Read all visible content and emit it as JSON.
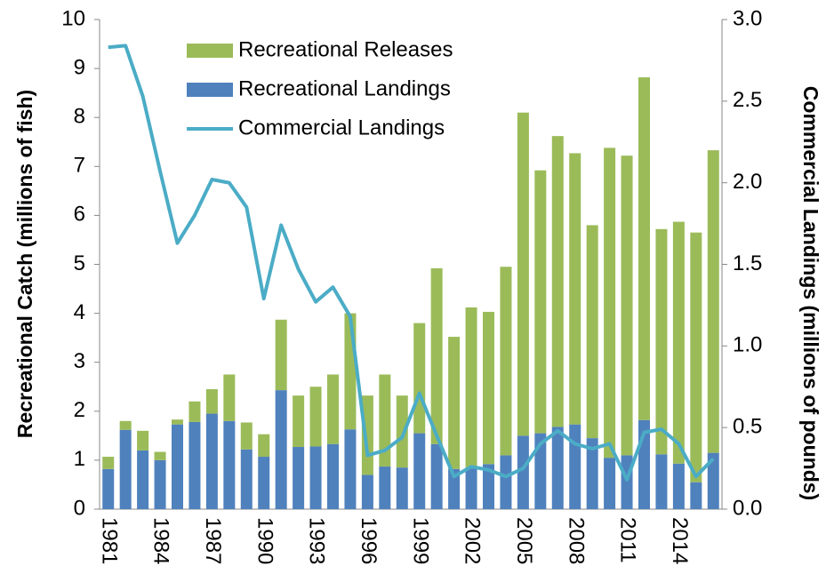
{
  "chart_data": {
    "type": "bar",
    "categories": [
      "1981",
      null,
      null,
      "1984",
      null,
      null,
      "1987",
      null,
      null,
      "1990",
      null,
      null,
      "1993",
      null,
      null,
      "1996",
      null,
      null,
      "1999",
      null,
      null,
      "2002",
      null,
      null,
      "2005",
      null,
      null,
      "2008",
      null,
      null,
      "2011",
      null,
      null,
      "2014",
      null,
      null
    ],
    "series": [
      {
        "name": "Recreational Releases",
        "color": "#9bbb59",
        "type": "bar",
        "stack": true,
        "values": [
          0.25,
          0.18,
          0.4,
          0.17,
          0.1,
          0.42,
          0.5,
          0.95,
          0.55,
          0.46,
          1.44,
          1.05,
          1.22,
          1.42,
          2.37,
          1.62,
          1.88,
          1.47,
          2.25,
          3.59,
          2.7,
          3.27,
          3.11,
          3.85,
          6.6,
          5.37,
          5.94,
          5.54,
          4.35,
          6.33,
          6.12,
          7.0,
          4.6,
          4.94,
          5.1,
          6.18
        ]
      },
      {
        "name": "Recreational Landings",
        "color": "#4f81bd",
        "type": "bar",
        "stack": true,
        "values": [
          0.82,
          1.62,
          1.2,
          1.0,
          1.73,
          1.78,
          1.95,
          1.8,
          1.22,
          1.07,
          2.43,
          1.27,
          1.28,
          1.33,
          1.63,
          0.7,
          0.87,
          0.85,
          1.55,
          1.33,
          0.82,
          0.85,
          0.92,
          1.1,
          1.5,
          1.55,
          1.68,
          1.73,
          1.45,
          1.05,
          1.1,
          1.82,
          1.12,
          0.93,
          0.55,
          1.15
        ]
      },
      {
        "name": "Commercial Landings",
        "color": "#4bacc6",
        "type": "line",
        "axis": "y2",
        "values": [
          2.83,
          2.84,
          2.53,
          2.07,
          1.63,
          1.8,
          2.02,
          2.0,
          1.85,
          1.29,
          1.74,
          1.47,
          1.27,
          1.36,
          1.18,
          0.33,
          0.36,
          0.44,
          0.71,
          0.45,
          0.2,
          0.26,
          0.24,
          0.2,
          0.25,
          0.4,
          0.48,
          0.4,
          0.37,
          0.4,
          0.18,
          0.47,
          0.49,
          0.4,
          0.2,
          0.31
        ]
      }
    ],
    "y_label": "Recreational Catch (millions of fish)",
    "y2_label": "Commercial Landings (millions of pounds)",
    "ylim": [
      0,
      10
    ],
    "yticks": [
      0,
      1,
      2,
      3,
      4,
      5,
      6,
      7,
      8,
      9,
      10
    ],
    "y2lim": [
      0,
      3
    ],
    "y2ticks": [
      {
        "value": 0,
        "label": "0.0"
      },
      0.5,
      {
        "value": 1,
        "label": "1.0"
      },
      1.5,
      {
        "value": 2,
        "label": "2.0"
      },
      2.5,
      {
        "value": 3,
        "label": "3.0"
      }
    ],
    "legend": "top-left",
    "grid": false
  }
}
